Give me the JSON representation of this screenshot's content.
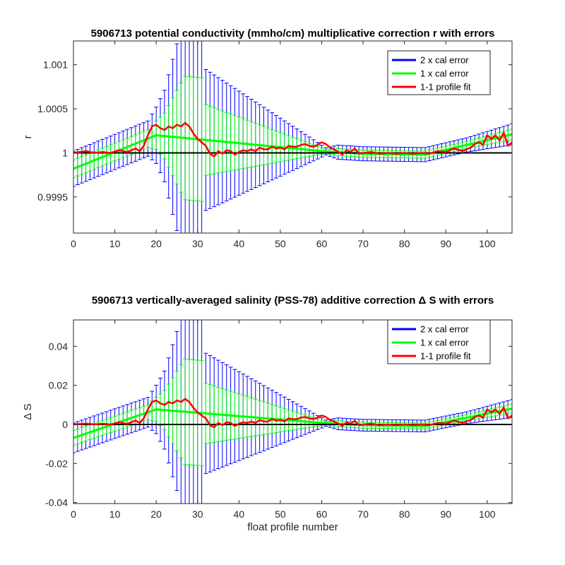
{
  "chart_data": [
    {
      "type": "line",
      "title": "5906713 potential conductivity (mmho/cm) multiplicative correction r with errors",
      "xlabel": "",
      "ylabel": "r",
      "xlim": [
        0,
        106
      ],
      "ylim": [
        0.99909,
        1.00127
      ],
      "xticks": [
        0,
        10,
        20,
        30,
        40,
        50,
        60,
        70,
        80,
        90,
        100
      ],
      "yticks": [
        0.9995,
        1,
        1.0005,
        1.001
      ],
      "ytick_labels": [
        "0.9995",
        "1",
        "1.0005",
        "1.001"
      ],
      "legend_position": "top-right",
      "reference_line": 1,
      "series": [
        {
          "name": "2 x cal error",
          "color": "#0000ff",
          "kind": "errorbar",
          "multiplier": 2
        },
        {
          "name": "1 x cal error",
          "color": "#00ff00",
          "kind": "errorbar",
          "multiplier": 1
        },
        {
          "name": "1-1 profile fit",
          "color": "#ff0000",
          "kind": "line",
          "x": [
            0,
            3,
            5,
            7,
            9,
            11,
            13,
            15,
            16,
            17,
            18,
            19,
            20,
            21,
            22,
            23,
            24,
            25,
            26,
            27,
            28,
            29,
            30,
            31,
            32,
            33,
            34,
            35,
            36,
            37,
            38,
            39,
            40,
            41,
            42,
            43,
            44,
            45,
            46,
            47,
            48,
            49,
            50,
            51,
            52,
            53,
            54,
            55,
            56,
            57,
            58,
            59,
            60,
            61,
            62,
            63,
            64,
            65,
            66,
            67,
            68,
            69,
            70,
            72,
            74,
            76,
            78,
            80,
            82,
            84,
            86,
            88,
            90,
            92,
            94,
            96,
            97,
            98,
            99,
            100,
            101,
            102,
            103,
            104,
            105,
            106
          ],
          "y": [
            1.0,
            1.00002,
            1.0,
            1.00001,
            1.0,
            1.00003,
            1.00001,
            1.00005,
            1.00002,
            1.00008,
            1.0002,
            1.0003,
            1.00032,
            1.00028,
            1.00026,
            1.0003,
            1.00028,
            1.00032,
            1.0003,
            1.00034,
            1.0003,
            1.00022,
            1.00016,
            1.00012,
            1.00008,
            0.99999,
            0.99996,
            1.00002,
            0.99999,
            1.00003,
            1.00002,
            0.99998,
            1.00001,
            1.00003,
            1.00002,
            1.00004,
            1.00002,
            1.00006,
            1.00004,
            1.00004,
            1.00007,
            1.00005,
            1.00006,
            1.00004,
            1.00008,
            1.00007,
            1.00007,
            1.00009,
            1.0001,
            1.00008,
            1.00007,
            1.00009,
            1.00012,
            1.0001,
            1.00006,
            1.00004,
            1.00001,
            0.99998,
            1.00003,
            1.00001,
            1.00005,
            0.99999,
            1.0,
            1.00001,
            0.99999,
            1.0,
            0.99999,
            1.0,
            0.99999,
            1.0,
            0.99999,
            1.00002,
            1.00001,
            1.00005,
            1.00002,
            1.00006,
            1.0001,
            1.00012,
            1.00009,
            1.0002,
            1.00016,
            1.0002,
            1.00014,
            1.00023,
            1.00008,
            1.00012
          ]
        }
      ],
      "fit_mean": {
        "x": [
          0,
          20,
          60,
          70,
          85,
          106
        ],
        "y": [
          0.99982,
          1.0002,
          1.00002,
          0.99999,
          0.99998,
          1.00021
        ]
      },
      "cal_error_1x": {
        "x": [
          0,
          18,
          20,
          22,
          24,
          26,
          27,
          31,
          32,
          58,
          61,
          64,
          86,
          95,
          106
        ],
        "y": [
          0.0001,
          0.0001,
          0.00016,
          0.00026,
          0.00044,
          0.00062,
          0.0007,
          0.0007,
          0.0004,
          6e-05,
          2e-05,
          4e-05,
          4e-05,
          4e-05,
          6e-05
        ]
      }
    },
    {
      "type": "line",
      "title": "5906713 vertically-averaged salinity (PSS-78) additive correction Δ S with errors",
      "xlabel": "float profile number",
      "ylabel": "Δ S",
      "xlim": [
        0,
        106
      ],
      "ylim": [
        -0.0405,
        0.0535
      ],
      "xticks": [
        0,
        10,
        20,
        30,
        40,
        50,
        60,
        70,
        80,
        90,
        100
      ],
      "yticks": [
        -0.04,
        -0.02,
        0,
        0.02,
        0.04
      ],
      "ytick_labels": [
        "-0.04",
        "-0.02",
        "0",
        "0.02",
        "0.04"
      ],
      "legend_position": "top-right",
      "reference_line": 0,
      "series": [
        {
          "name": "2 x cal error",
          "color": "#0000ff",
          "kind": "errorbar",
          "multiplier": 2
        },
        {
          "name": "1 x cal error",
          "color": "#00ff00",
          "kind": "errorbar",
          "multiplier": 1
        },
        {
          "name": "1-1 profile fit",
          "color": "#ff0000",
          "kind": "line",
          "x": [
            0,
            3,
            5,
            7,
            9,
            11,
            13,
            15,
            16,
            17,
            18,
            19,
            20,
            21,
            22,
            23,
            24,
            25,
            26,
            27,
            28,
            29,
            30,
            31,
            32,
            33,
            34,
            35,
            36,
            37,
            38,
            39,
            40,
            41,
            42,
            43,
            44,
            45,
            46,
            47,
            48,
            49,
            50,
            51,
            52,
            53,
            54,
            55,
            56,
            57,
            58,
            59,
            60,
            61,
            62,
            63,
            64,
            65,
            66,
            67,
            68,
            69,
            70,
            72,
            74,
            76,
            78,
            80,
            82,
            84,
            86,
            88,
            90,
            92,
            94,
            96,
            97,
            98,
            99,
            100,
            101,
            102,
            103,
            104,
            105,
            106
          ],
          "y": [
            0.0,
            0.0005,
            0.0,
            0.0004,
            0.0,
            0.0011,
            0.0003,
            0.002,
            0.0008,
            0.0031,
            0.0077,
            0.0115,
            0.0123,
            0.0108,
            0.01,
            0.0115,
            0.0108,
            0.0123,
            0.0115,
            0.0131,
            0.0115,
            0.0085,
            0.0062,
            0.0046,
            0.0031,
            -0.0004,
            -0.0015,
            0.0008,
            -0.0004,
            0.0011,
            0.0008,
            -0.0008,
            0.0004,
            0.0011,
            0.0008,
            0.0015,
            0.0008,
            0.0023,
            0.0015,
            0.0015,
            0.0027,
            0.0019,
            0.0023,
            0.0015,
            0.0031,
            0.0027,
            0.0027,
            0.0035,
            0.0038,
            0.0031,
            0.0027,
            0.0035,
            0.0046,
            0.0038,
            0.0023,
            0.0015,
            0.0004,
            -0.0008,
            0.0011,
            0.0004,
            0.0019,
            -0.0004,
            0.0,
            0.0004,
            -0.0004,
            0.0,
            -0.0004,
            0.0,
            -0.0004,
            0.0,
            -0.0004,
            0.0008,
            0.0004,
            0.0019,
            0.0008,
            0.0023,
            0.0038,
            0.0046,
            0.0035,
            0.0077,
            0.0062,
            0.0077,
            0.0054,
            0.0088,
            0.0031,
            0.0046
          ]
        }
      ],
      "fit_mean": {
        "x": [
          0,
          20,
          60,
          70,
          85,
          106
        ],
        "y": [
          -0.0069,
          0.0077,
          0.0008,
          -0.0004,
          -0.0008,
          0.0081
        ]
      },
      "cal_error_1x": {
        "x": [
          0,
          18,
          20,
          22,
          24,
          26,
          27,
          31,
          32,
          58,
          61,
          64,
          86,
          95,
          106
        ],
        "y": [
          0.0038,
          0.0038,
          0.0062,
          0.01,
          0.0169,
          0.0238,
          0.0269,
          0.0269,
          0.0154,
          0.0023,
          0.0008,
          0.0015,
          0.0015,
          0.0015,
          0.0023
        ]
      }
    }
  ]
}
